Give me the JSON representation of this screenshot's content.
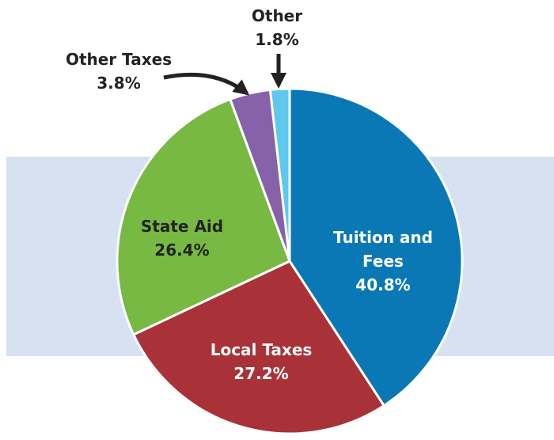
{
  "chart_data": {
    "type": "pie",
    "categories": [
      "Tuition and Fees",
      "Local Taxes",
      "State Aid",
      "Other Taxes",
      "Other"
    ],
    "values": [
      40.8,
      27.2,
      26.4,
      3.8,
      1.8
    ],
    "value_labels": [
      "40.8%",
      "27.2%",
      "26.4%",
      "3.8%",
      "1.8%"
    ],
    "colors": [
      "#0a78b5",
      "#a93238",
      "#78b943",
      "#8762aa",
      "#5ec8ef"
    ]
  }
}
